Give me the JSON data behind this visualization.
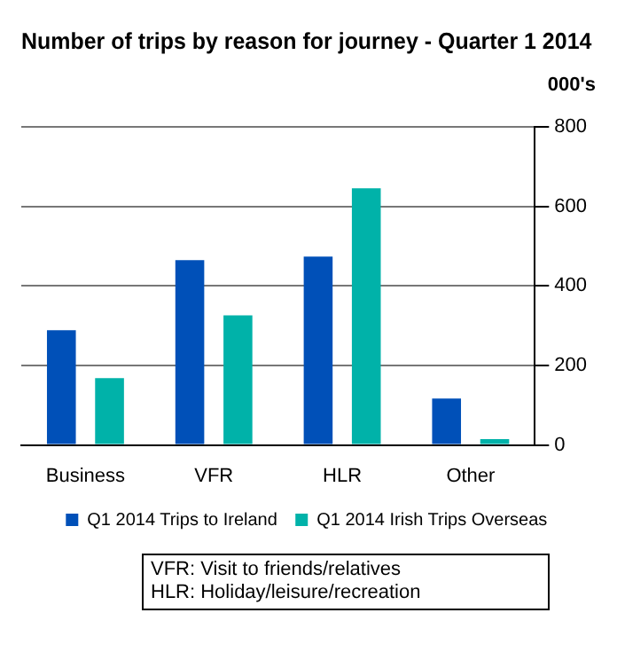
{
  "chart_data": {
    "type": "bar",
    "title": "Number of trips by reason for journey - Quarter 1 2014",
    "ylabel": "000's",
    "categories": [
      "Business",
      "VFR",
      "HLR",
      "Other"
    ],
    "series": [
      {
        "name": "Q1 2014 Trips to Ireland",
        "color": "#0050b8",
        "values": [
          289,
          465,
          474,
          117
        ]
      },
      {
        "name": "Q1 2014 Irish Trips Overseas",
        "color": "#00b2a9",
        "values": [
          168,
          326,
          646,
          15
        ]
      }
    ],
    "ylim": [
      0,
      800
    ],
    "yticks": [
      0,
      200,
      400,
      600,
      800
    ],
    "grid": "y",
    "legend": "bottom",
    "annotations": [
      "VFR: Visit to friends/relatives",
      "HLR: Holiday/leisure/recreation"
    ]
  }
}
